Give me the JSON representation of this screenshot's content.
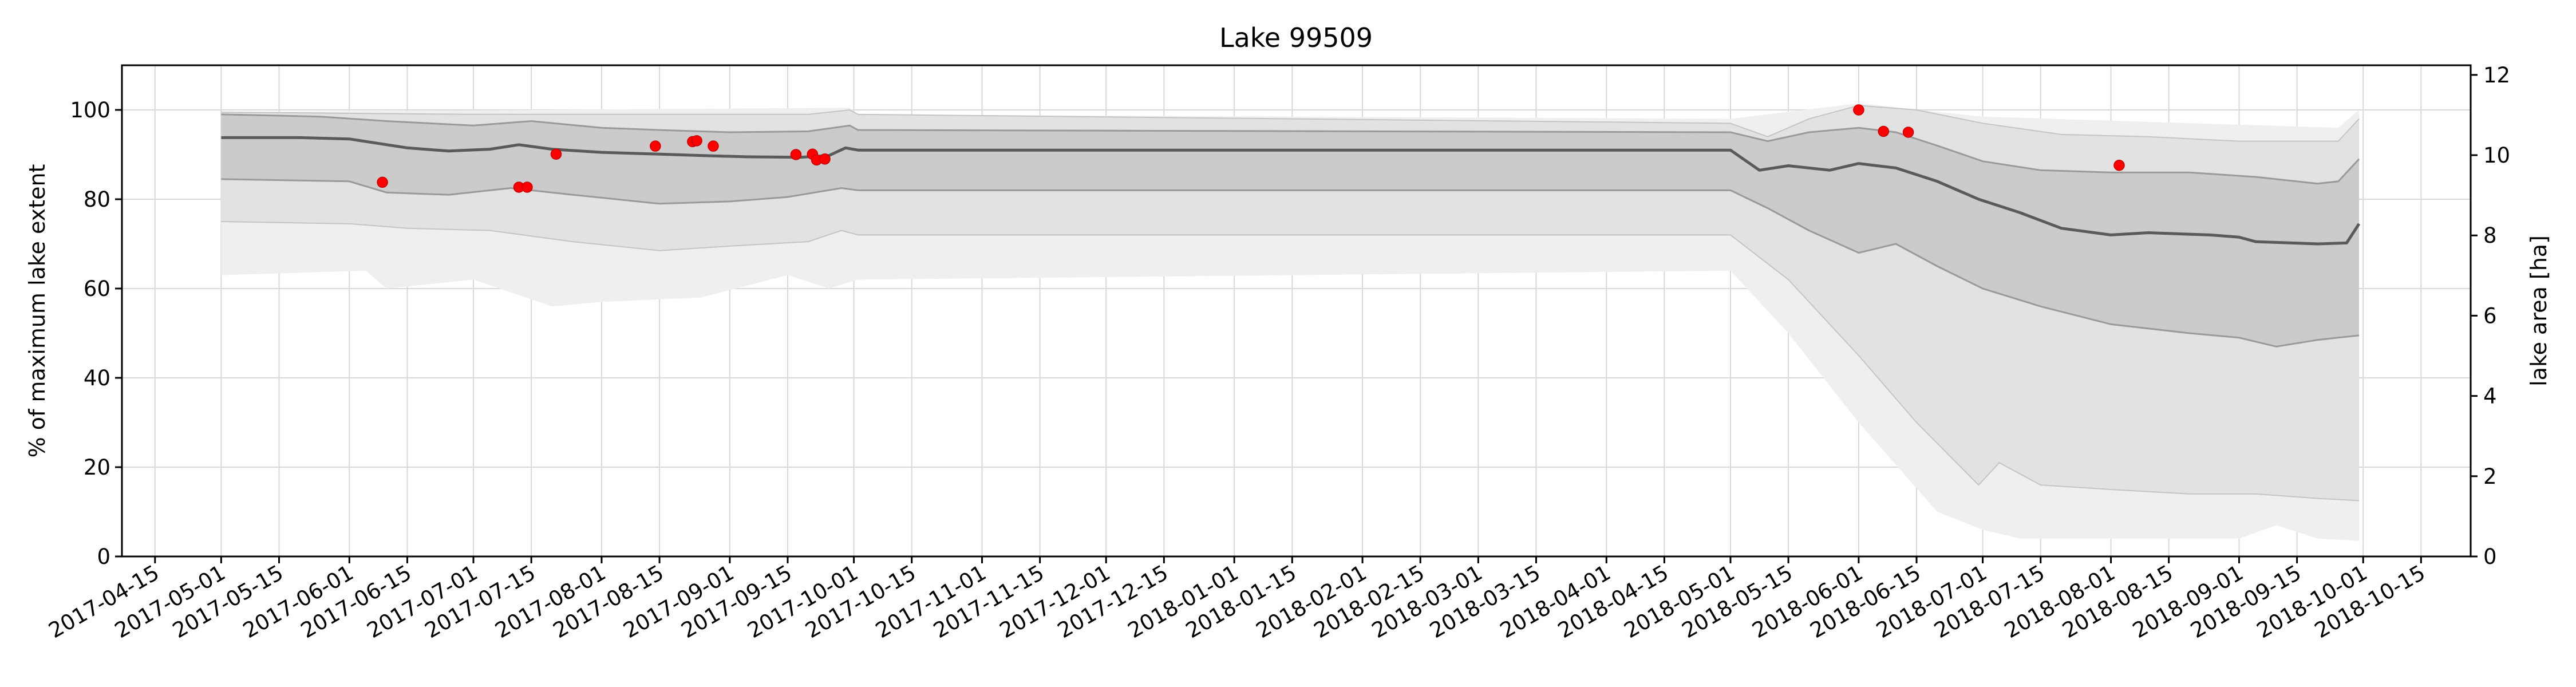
{
  "chart_data": {
    "type": "line",
    "title": "Lake 99509",
    "ylabel": "% of maximum lake extent",
    "y2label": "lake area [ha]",
    "ylim": [
      0,
      110
    ],
    "y2lim": [
      0,
      12.24
    ],
    "xlim": [
      "2017-04-07",
      "2018-10-27"
    ],
    "y_ticks": [
      0,
      20,
      40,
      60,
      80,
      100
    ],
    "y2_ticks": [
      0,
      2,
      4,
      6,
      8,
      10,
      12
    ],
    "x_ticks": [
      "2017-04-15",
      "2017-05-01",
      "2017-05-15",
      "2017-06-01",
      "2017-06-15",
      "2017-07-01",
      "2017-07-15",
      "2017-08-01",
      "2017-08-15",
      "2017-09-01",
      "2017-09-15",
      "2017-10-01",
      "2017-10-15",
      "2017-11-01",
      "2017-11-15",
      "2017-12-01",
      "2017-12-15",
      "2018-01-01",
      "2018-01-15",
      "2018-02-01",
      "2018-02-15",
      "2018-03-01",
      "2018-03-15",
      "2018-04-01",
      "2018-04-15",
      "2018-05-01",
      "2018-05-15",
      "2018-06-01",
      "2018-06-15",
      "2018-07-01",
      "2018-07-15",
      "2018-08-01",
      "2018-08-15",
      "2018-09-01",
      "2018-09-15",
      "2018-10-01",
      "2018-10-15"
    ],
    "grid": true,
    "colors": {
      "median": "#5a5a5a",
      "band_inner": "#cbcbcb",
      "band_middle": "#e2e2e2",
      "band_outer": "#efefef",
      "band_edge": "#9a9a9a",
      "observations": "#ff0000"
    },
    "series": [
      {
        "role": "median",
        "points": [
          [
            "2017-05-01",
            93.8
          ],
          [
            "2017-05-20",
            93.8
          ],
          [
            "2017-06-01",
            93.5
          ],
          [
            "2017-06-15",
            91.5
          ],
          [
            "2017-06-25",
            90.8
          ],
          [
            "2017-07-05",
            91.2
          ],
          [
            "2017-07-12",
            92.2
          ],
          [
            "2017-07-20",
            91.2
          ],
          [
            "2017-08-01",
            90.5
          ],
          [
            "2017-08-15",
            90.1
          ],
          [
            "2017-08-25",
            89.8
          ],
          [
            "2017-09-05",
            89.5
          ],
          [
            "2017-09-18",
            89.4
          ],
          [
            "2017-09-25",
            89.8
          ],
          [
            "2017-09-29",
            91.5
          ],
          [
            "2017-10-02",
            91.0
          ],
          [
            "2018-05-01",
            91.0
          ],
          [
            "2018-05-08",
            86.5
          ],
          [
            "2018-05-15",
            87.5
          ],
          [
            "2018-05-25",
            86.5
          ],
          [
            "2018-06-01",
            88.0
          ],
          [
            "2018-06-10",
            87.0
          ],
          [
            "2018-06-20",
            84.0
          ],
          [
            "2018-06-30",
            80.0
          ],
          [
            "2018-07-10",
            77.0
          ],
          [
            "2018-07-20",
            73.5
          ],
          [
            "2018-08-01",
            72.0
          ],
          [
            "2018-08-10",
            72.5
          ],
          [
            "2018-08-25",
            72.0
          ],
          [
            "2018-09-01",
            71.5
          ],
          [
            "2018-09-05",
            70.5
          ],
          [
            "2018-09-20",
            70.0
          ],
          [
            "2018-09-27",
            70.2
          ],
          [
            "2018-09-30",
            74.5
          ]
        ]
      },
      {
        "role": "inner-upper",
        "points": [
          [
            "2017-05-01",
            99.0
          ],
          [
            "2017-05-25",
            98.5
          ],
          [
            "2017-06-10",
            97.5
          ],
          [
            "2017-07-01",
            96.5
          ],
          [
            "2017-07-15",
            97.5
          ],
          [
            "2017-08-01",
            96.0
          ],
          [
            "2017-08-15",
            95.5
          ],
          [
            "2017-09-01",
            95.0
          ],
          [
            "2017-09-20",
            95.2
          ],
          [
            "2017-09-30",
            96.5
          ],
          [
            "2017-10-02",
            95.5
          ],
          [
            "2018-05-01",
            95.0
          ],
          [
            "2018-05-10",
            93.0
          ],
          [
            "2018-05-20",
            95.0
          ],
          [
            "2018-06-01",
            96.0
          ],
          [
            "2018-06-10",
            95.0
          ],
          [
            "2018-06-20",
            92.0
          ],
          [
            "2018-07-01",
            88.5
          ],
          [
            "2018-07-15",
            86.5
          ],
          [
            "2018-08-01",
            86.0
          ],
          [
            "2018-08-20",
            86.0
          ],
          [
            "2018-09-05",
            85.0
          ],
          [
            "2018-09-20",
            83.5
          ],
          [
            "2018-09-25",
            84.0
          ],
          [
            "2018-09-30",
            89.0
          ]
        ]
      },
      {
        "role": "inner-lower",
        "points": [
          [
            "2017-05-01",
            84.5
          ],
          [
            "2017-06-01",
            84.0
          ],
          [
            "2017-06-10",
            81.5
          ],
          [
            "2017-06-25",
            81.0
          ],
          [
            "2017-07-10",
            82.5
          ],
          [
            "2017-07-25",
            81.0
          ],
          [
            "2017-08-15",
            79.0
          ],
          [
            "2017-09-01",
            79.5
          ],
          [
            "2017-09-15",
            80.5
          ],
          [
            "2017-09-28",
            82.5
          ],
          [
            "2017-10-02",
            82.0
          ],
          [
            "2018-05-01",
            82.0
          ],
          [
            "2018-05-10",
            78.0
          ],
          [
            "2018-05-20",
            73.0
          ],
          [
            "2018-06-01",
            68.0
          ],
          [
            "2018-06-10",
            70.0
          ],
          [
            "2018-06-20",
            65.0
          ],
          [
            "2018-07-01",
            60.0
          ],
          [
            "2018-07-15",
            56.0
          ],
          [
            "2018-08-01",
            52.0
          ],
          [
            "2018-08-20",
            50.0
          ],
          [
            "2018-09-01",
            49.0
          ],
          [
            "2018-09-10",
            47.0
          ],
          [
            "2018-09-20",
            48.5
          ],
          [
            "2018-09-30",
            49.5
          ]
        ]
      },
      {
        "role": "middle-upper",
        "points": [
          [
            "2017-05-01",
            99.5
          ],
          [
            "2017-07-01",
            99.0
          ],
          [
            "2017-09-20",
            99.0
          ],
          [
            "2017-09-30",
            100.0
          ],
          [
            "2017-10-02",
            99.0
          ],
          [
            "2018-05-01",
            97.0
          ],
          [
            "2018-05-10",
            94.0
          ],
          [
            "2018-05-20",
            98.0
          ],
          [
            "2018-06-01",
            101.0
          ],
          [
            "2018-06-15",
            100.0
          ],
          [
            "2018-07-01",
            97.0
          ],
          [
            "2018-07-20",
            94.5
          ],
          [
            "2018-08-10",
            94.0
          ],
          [
            "2018-09-01",
            93.0
          ],
          [
            "2018-09-25",
            93.0
          ],
          [
            "2018-09-30",
            98.0
          ]
        ]
      },
      {
        "role": "middle-lower",
        "points": [
          [
            "2017-05-01",
            75.0
          ],
          [
            "2017-06-01",
            74.5
          ],
          [
            "2017-06-15",
            73.5
          ],
          [
            "2017-07-05",
            73.0
          ],
          [
            "2017-07-25",
            70.5
          ],
          [
            "2017-08-15",
            68.5
          ],
          [
            "2017-09-01",
            69.5
          ],
          [
            "2017-09-20",
            70.5
          ],
          [
            "2017-09-28",
            73.0
          ],
          [
            "2017-10-02",
            72.0
          ],
          [
            "2018-05-01",
            72.0
          ],
          [
            "2018-05-15",
            62.0
          ],
          [
            "2018-06-01",
            45.0
          ],
          [
            "2018-06-15",
            30.0
          ],
          [
            "2018-06-30",
            16.0
          ],
          [
            "2018-07-05",
            21.0
          ],
          [
            "2018-07-15",
            16.0
          ],
          [
            "2018-08-01",
            15.0
          ],
          [
            "2018-08-20",
            14.0
          ],
          [
            "2018-09-05",
            14.0
          ],
          [
            "2018-09-20",
            13.0
          ],
          [
            "2018-09-30",
            12.5
          ]
        ]
      },
      {
        "role": "outer-upper",
        "points": [
          [
            "2017-05-01",
            99.5
          ],
          [
            "2017-09-30",
            100.5
          ],
          [
            "2017-10-02",
            99.0
          ],
          [
            "2018-05-01",
            98.0
          ],
          [
            "2018-06-01",
            101.5
          ],
          [
            "2018-07-01",
            98.5
          ],
          [
            "2018-09-25",
            96.0
          ],
          [
            "2018-09-30",
            100.0
          ]
        ]
      },
      {
        "role": "outer-lower",
        "points": [
          [
            "2017-05-01",
            63.0
          ],
          [
            "2017-06-05",
            64.0
          ],
          [
            "2017-06-10",
            60.0
          ],
          [
            "2017-07-01",
            62.0
          ],
          [
            "2017-07-20",
            56.0
          ],
          [
            "2017-08-01",
            57.0
          ],
          [
            "2017-08-25",
            58.0
          ],
          [
            "2017-09-15",
            63.0
          ],
          [
            "2017-09-25",
            60.0
          ],
          [
            "2017-10-02",
            62.0
          ],
          [
            "2018-05-01",
            64.0
          ],
          [
            "2018-05-15",
            50.0
          ],
          [
            "2018-06-01",
            30.0
          ],
          [
            "2018-06-20",
            10.0
          ],
          [
            "2018-07-01",
            6.0
          ],
          [
            "2018-07-10",
            4.0
          ],
          [
            "2018-08-01",
            4.0
          ],
          [
            "2018-09-01",
            4.0
          ],
          [
            "2018-09-10",
            7.0
          ],
          [
            "2018-09-20",
            4.0
          ],
          [
            "2018-09-30",
            3.5
          ]
        ]
      },
      {
        "role": "observations",
        "points": [
          [
            "2017-06-09",
            83.8
          ],
          [
            "2017-07-12",
            82.7
          ],
          [
            "2017-07-14",
            82.7
          ],
          [
            "2017-07-21",
            90.1
          ],
          [
            "2017-08-14",
            91.9
          ],
          [
            "2017-08-23",
            92.9
          ],
          [
            "2017-08-24",
            93.1
          ],
          [
            "2017-08-28",
            91.9
          ],
          [
            "2017-09-17",
            90.0
          ],
          [
            "2017-09-21",
            90.1
          ],
          [
            "2017-09-22",
            88.8
          ],
          [
            "2017-09-24",
            89.0
          ],
          [
            "2018-06-01",
            100.0
          ],
          [
            "2018-06-07",
            95.2
          ],
          [
            "2018-06-13",
            95.0
          ],
          [
            "2018-08-03",
            87.6
          ]
        ]
      }
    ]
  }
}
